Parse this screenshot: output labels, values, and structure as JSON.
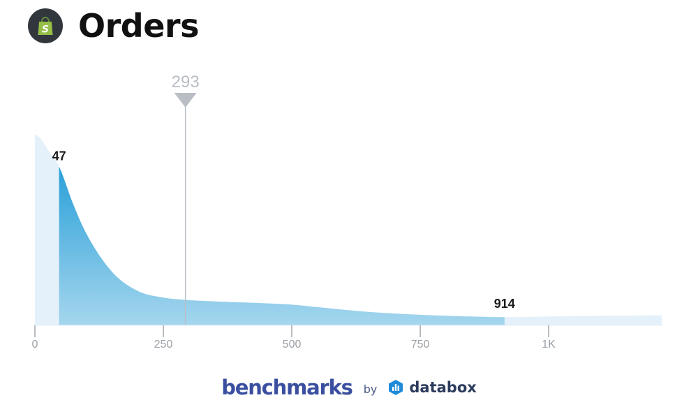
{
  "header": {
    "title": "Orders",
    "logo_icon": "shopify-bag-icon",
    "logo_letter": "S"
  },
  "chart_data": {
    "type": "area",
    "title": "Orders",
    "xlabel": "",
    "ylabel": "",
    "xlim": [
      0,
      1220
    ],
    "ylim": [
      0,
      100
    ],
    "x_ticks": [
      {
        "value": 0,
        "label": "0"
      },
      {
        "value": 250,
        "label": "250"
      },
      {
        "value": 500,
        "label": "500"
      },
      {
        "value": 750,
        "label": "750"
      },
      {
        "value": 1000,
        "label": "1K"
      }
    ],
    "distribution": {
      "x": [
        0,
        10,
        25,
        47,
        75,
        100,
        150,
        200,
        250,
        293,
        350,
        450,
        500,
        550,
        650,
        750,
        850,
        914,
        1000,
        1100,
        1220
      ],
      "y": [
        100,
        98,
        92,
        83,
        63,
        48,
        28,
        18,
        14.5,
        13.3,
        12.5,
        11.5,
        10.8,
        9.5,
        7,
        5.5,
        4.6,
        4.3,
        4.6,
        5,
        5.2
      ]
    },
    "range": {
      "low": 47,
      "high": 914,
      "low_label": "47",
      "high_label": "914"
    },
    "marker": {
      "value": 293,
      "label": "293"
    },
    "colors": {
      "range_fill_top": "#2aa0d8",
      "range_fill_bottom": "#a5d6ee",
      "outside_fill": "#e4f1fa",
      "marker": "#b9bec4",
      "axis": "#8a8f95",
      "tick_label": "#9aa0a6"
    },
    "grid": false,
    "legend": "none"
  },
  "footer": {
    "benchmarks": "benchmarks",
    "by": "by",
    "databox": "databox",
    "databox_icon": "databox-logo-icon"
  }
}
